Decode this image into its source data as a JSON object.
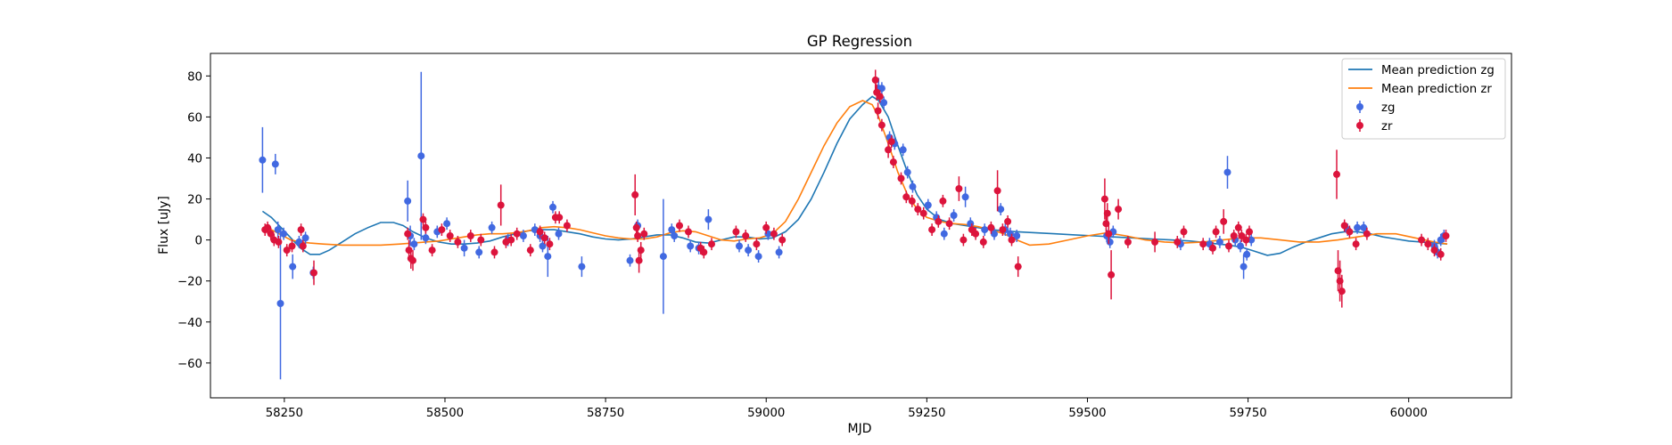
{
  "chart_data": {
    "type": "scatter",
    "title": "GP Regression",
    "xlabel": "MJD",
    "ylabel": "Flux [uJy]",
    "xlim": [
      58135,
      60160
    ],
    "ylim": [
      -77,
      91
    ],
    "xticks": [
      58250,
      58500,
      58750,
      59000,
      59250,
      59500,
      59750,
      60000
    ],
    "yticks": [
      -60,
      -40,
      -20,
      0,
      20,
      40,
      60,
      80
    ],
    "legend_position": "top-right",
    "colors": {
      "zg": "#4169e1",
      "zr": "#dc143c",
      "mean_zg": "#1f77b4",
      "mean_zr": "#ff7f0e"
    },
    "legend": [
      {
        "label": "Mean prediction zg",
        "kind": "line",
        "color": "#1f77b4"
      },
      {
        "label": "Mean prediction zr",
        "kind": "line",
        "color": "#ff7f0e"
      },
      {
        "label": "zg",
        "kind": "errorbar",
        "color": "#4169e1"
      },
      {
        "label": "zr",
        "kind": "errorbar",
        "color": "#dc143c"
      }
    ],
    "lines": [
      {
        "name": "Mean prediction zg",
        "color": "#1f77b4",
        "x": [
          58216,
          58230,
          58245,
          58260,
          58275,
          58290,
          58305,
          58320,
          58340,
          58360,
          58380,
          58400,
          58420,
          58435,
          58450,
          58470,
          58490,
          58510,
          58530,
          58550,
          58570,
          58590,
          58610,
          58630,
          58650,
          58670,
          58690,
          58710,
          58730,
          58750,
          58770,
          58790,
          58810,
          58830,
          58850,
          58870,
          58890,
          58910,
          58930,
          58950,
          58970,
          58990,
          59010,
          59030,
          59050,
          59070,
          59090,
          59110,
          59130,
          59150,
          59165,
          59175,
          59190,
          59205,
          59220,
          59235,
          59250,
          59270,
          59290,
          59310,
          59330,
          59350,
          59370,
          59390,
          59420,
          59450,
          59480,
          59510,
          59540,
          59570,
          59600,
          59630,
          59660,
          59690,
          59720,
          59740,
          59760,
          59780,
          59800,
          59820,
          59840,
          59860,
          59880,
          59900,
          59920,
          59940,
          59960,
          59980,
          60000,
          60020,
          60040,
          60060
        ],
        "y": [
          14,
          11,
          6,
          1,
          -4,
          -7,
          -7,
          -5,
          -1,
          3,
          6,
          8.5,
          8.5,
          7,
          4,
          1,
          -1,
          -2,
          -2,
          -1.5,
          -0.5,
          1.5,
          3,
          4.5,
          5,
          5,
          4,
          3,
          1.5,
          0.5,
          0,
          0.5,
          1.5,
          2.5,
          2.5,
          1,
          -1,
          -1.5,
          0,
          1.5,
          1.5,
          0.5,
          1,
          4,
          10,
          20,
          33,
          47,
          59,
          66,
          70,
          68,
          60,
          46,
          33,
          22,
          15,
          10,
          8,
          7,
          6,
          5,
          4.5,
          4,
          3.5,
          3,
          2.5,
          2,
          1.5,
          1,
          0.5,
          0,
          -0.5,
          -1.5,
          -2.5,
          -3.5,
          -5.5,
          -7.5,
          -6.5,
          -3.5,
          -1,
          1,
          3,
          4,
          4,
          3,
          1.5,
          0.5,
          -0.5,
          -1,
          -1.5,
          -2
        ]
      },
      {
        "name": "Mean prediction zr",
        "color": "#ff7f0e",
        "x": [
          58216,
          58230,
          58245,
          58260,
          58275,
          58290,
          58310,
          58340,
          58370,
          58400,
          58430,
          58450,
          58470,
          58490,
          58510,
          58530,
          58550,
          58570,
          58590,
          58610,
          58630,
          58650,
          58670,
          58690,
          58710,
          58730,
          58750,
          58770,
          58790,
          58810,
          58830,
          58850,
          58870,
          58890,
          58910,
          58930,
          58950,
          58970,
          58990,
          59010,
          59030,
          59050,
          59070,
          59090,
          59110,
          59130,
          59150,
          59165,
          59175,
          59190,
          59205,
          59220,
          59235,
          59250,
          59270,
          59290,
          59310,
          59330,
          59350,
          59370,
          59390,
          59410,
          59440,
          59470,
          59500,
          59530,
          59560,
          59590,
          59620,
          59650,
          59680,
          59710,
          59740,
          59770,
          59800,
          59830,
          59860,
          59890,
          59920,
          59950,
          59980,
          60010,
          60040,
          60060
        ],
        "y": [
          6,
          5,
          2.5,
          0,
          -1,
          -1.5,
          -2,
          -2.5,
          -2.5,
          -2.5,
          -2,
          -1.5,
          -1,
          -0.5,
          0.5,
          1.5,
          2.5,
          3,
          3,
          3.5,
          4.5,
          6,
          6.5,
          6,
          5,
          3.5,
          2,
          1,
          0.5,
          0.5,
          1.5,
          3.5,
          4.5,
          4,
          2,
          0,
          -0.5,
          0.5,
          1,
          3,
          9,
          20,
          33,
          46,
          57,
          65,
          68,
          66,
          60,
          47,
          33,
          22,
          15,
          11,
          9,
          8,
          7.5,
          6.5,
          5,
          3,
          0,
          -2.5,
          -2,
          0,
          2,
          3.5,
          2,
          0,
          -1,
          -1.5,
          -1,
          0,
          1,
          1,
          0,
          -1,
          -1,
          0,
          1.5,
          3,
          3,
          1,
          -1,
          -2
        ]
      }
    ],
    "series": [
      {
        "name": "zg",
        "color": "#4169e1",
        "x": [
          58216,
          58236,
          58240,
          58244,
          58249,
          58263,
          58273,
          58283,
          58295,
          58442,
          58446,
          58452,
          58463,
          58470,
          58488,
          58503,
          58530,
          58553,
          58573,
          58598,
          58622,
          58640,
          58648,
          58652,
          58660,
          58668,
          58677,
          58713,
          58788,
          58800,
          58840,
          58853,
          58857,
          58882,
          58895,
          58910,
          58958,
          58972,
          58988,
          59003,
          59020,
          59175,
          59180,
          59183,
          59192,
          59200,
          59213,
          59220,
          59228,
          59252,
          59265,
          59277,
          59292,
          59310,
          59318,
          59340,
          59355,
          59365,
          59372,
          59380,
          59390,
          59530,
          59535,
          59540,
          59645,
          59690,
          59706,
          59718,
          59730,
          59738,
          59743,
          59748,
          59755,
          59905,
          59920,
          59930,
          60040,
          60045,
          60050,
          60055
        ],
        "y": [
          39,
          37,
          5,
          -31,
          3,
          -13,
          -1,
          1,
          -16,
          19,
          2,
          -2,
          41,
          1,
          4,
          8,
          -4,
          -6,
          6,
          0,
          2,
          5,
          2,
          -3,
          -8,
          16,
          3,
          -13,
          -10,
          7,
          -8,
          5,
          2,
          -3,
          -4,
          10,
          -3,
          -5,
          -8,
          3,
          -6,
          74,
          74,
          67,
          50,
          47,
          44,
          33,
          26,
          17,
          11,
          3,
          12,
          21,
          8,
          5,
          3,
          15,
          5,
          3,
          2,
          2,
          -1,
          4,
          -2,
          -2,
          -1,
          33,
          0,
          -3,
          -13,
          -7,
          0,
          5,
          6,
          6,
          -3,
          -6,
          0,
          2
        ],
        "err": [
          16,
          5,
          4,
          37,
          3,
          6,
          3,
          3,
          3,
          10,
          5,
          3,
          41,
          3,
          3,
          3,
          4,
          3,
          3,
          3,
          3,
          3,
          3,
          3,
          10,
          3,
          3,
          5,
          3,
          3,
          28,
          3,
          3,
          3,
          3,
          5,
          3,
          3,
          3,
          3,
          3,
          5,
          3,
          3,
          3,
          3,
          3,
          3,
          3,
          3,
          3,
          3,
          3,
          5,
          3,
          3,
          3,
          3,
          3,
          3,
          3,
          3,
          3,
          3,
          3,
          3,
          3,
          8,
          3,
          3,
          6,
          3,
          3,
          3,
          3,
          3,
          3,
          3,
          3,
          3
        ]
      },
      {
        "name": "zr",
        "color": "#dc143c",
        "x": [
          58220,
          58224,
          58229,
          58234,
          58241,
          58254,
          58262,
          58276,
          58279,
          58296,
          58442,
          58444,
          58447,
          58450,
          58466,
          58470,
          58480,
          58495,
          58508,
          58520,
          58540,
          58556,
          58577,
          58587,
          58595,
          58603,
          58612,
          58633,
          58648,
          58655,
          58663,
          58672,
          58678,
          58690,
          58796,
          58798,
          58800,
          58802,
          58805,
          58810,
          58865,
          58879,
          58898,
          58903,
          58915,
          58953,
          58968,
          58985,
          59000,
          59012,
          59025,
          59170,
          59172,
          59174,
          59177,
          59180,
          59190,
          59195,
          59198,
          59210,
          59218,
          59227,
          59236,
          59245,
          59258,
          59268,
          59275,
          59285,
          59300,
          59307,
          59320,
          59326,
          59338,
          59350,
          59360,
          59368,
          59376,
          59382,
          59392,
          59527,
          59529,
          59531,
          59533,
          59537,
          59548,
          59563,
          59605,
          59640,
          59650,
          59680,
          59695,
          59700,
          59712,
          59720,
          59728,
          59735,
          59740,
          59747,
          59752,
          59888,
          59890,
          59893,
          59896,
          59900,
          59908,
          59918,
          59935,
          60020,
          60030,
          60040,
          60050,
          60058
        ],
        "y": [
          5,
          6,
          3,
          0,
          -1,
          -5,
          -3,
          5,
          -3,
          -16,
          3,
          -5,
          -9,
          -10,
          10,
          6,
          -5,
          5,
          2,
          -1,
          2,
          0,
          -6,
          17,
          -1,
          0,
          3,
          -5,
          4,
          1,
          -2,
          11,
          11,
          7,
          22,
          6,
          2,
          -10,
          -5,
          3,
          7,
          4,
          -4,
          -6,
          -2,
          4,
          2,
          -2,
          6,
          3,
          0,
          78,
          72,
          63,
          70,
          56,
          44,
          48,
          38,
          30,
          21,
          19,
          15,
          13,
          5,
          9,
          19,
          8,
          25,
          0,
          5,
          3,
          -1,
          6,
          24,
          5,
          9,
          0,
          -13,
          20,
          8,
          13,
          3,
          -17,
          15,
          -1,
          -1,
          -1,
          4,
          -2,
          -4,
          4,
          9,
          -3,
          2,
          6,
          2,
          0,
          4,
          32,
          -15,
          -20,
          -25,
          7,
          4,
          -2,
          3,
          0,
          -2,
          -5,
          -7,
          2
        ],
        "err": [
          3,
          3,
          3,
          3,
          3,
          3,
          3,
          3,
          3,
          6,
          3,
          5,
          5,
          5,
          3,
          3,
          3,
          3,
          3,
          3,
          3,
          3,
          3,
          10,
          3,
          3,
          3,
          3,
          3,
          3,
          3,
          3,
          3,
          3,
          10,
          3,
          3,
          6,
          4,
          3,
          3,
          3,
          3,
          3,
          3,
          3,
          3,
          3,
          3,
          3,
          3,
          5,
          4,
          4,
          3,
          3,
          4,
          3,
          3,
          3,
          3,
          3,
          3,
          3,
          3,
          3,
          3,
          3,
          6,
          3,
          3,
          3,
          3,
          3,
          10,
          3,
          3,
          3,
          5,
          10,
          6,
          5,
          5,
          12,
          5,
          3,
          5,
          3,
          3,
          3,
          3,
          3,
          6,
          3,
          3,
          3,
          3,
          3,
          3,
          12,
          10,
          10,
          8,
          3,
          3,
          3,
          3,
          3,
          3,
          3,
          3,
          3
        ]
      }
    ]
  }
}
